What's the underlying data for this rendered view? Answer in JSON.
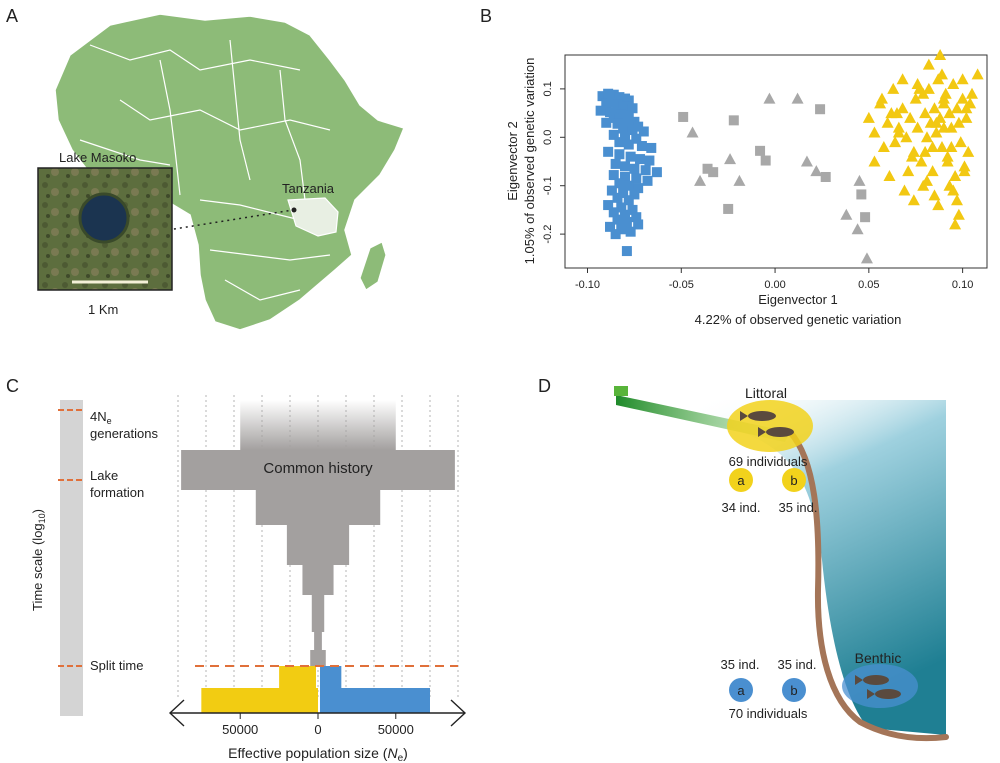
{
  "panels": {
    "a": {
      "letter": "A",
      "lake_name": "Lake Masoko",
      "country": "Tanzania",
      "scale_label": "1 Km",
      "colors": {
        "land": "#8dbb78",
        "border": "#ffffff",
        "tanzania": "#e8efe3",
        "lake": "#1b3450"
      }
    },
    "b": {
      "letter": "B",
      "xlabel_line1": "Eigenvector 1",
      "xlabel_line2": "4.22% of observed genetic variation",
      "ylabel_line1": "Eigenvector 2",
      "ylabel_line2": "1.05% of observed genetic variation"
    },
    "c": {
      "letter": "C",
      "time_axis_label": "Time scale (log",
      "time_axis_sub": "10",
      "time_axis_close": ")",
      "marker_4ne_prefix": "4N",
      "marker_4ne_sub": "e",
      "marker_4ne_line2": "generations",
      "marker_lake_line1": "Lake",
      "marker_lake_line2": "formation",
      "marker_split": "Split time",
      "common_history": "Common history",
      "xlabel_prefix": "Effective population size (",
      "xlabel_var": "N",
      "xlabel_sub": "e",
      "xlabel_suffix": ")",
      "ticks": [
        "50000",
        "0",
        "50000"
      ]
    },
    "d": {
      "letter": "D",
      "littoral_label": "Littoral",
      "littoral_count": "69 individuals",
      "littoral_a": "a",
      "littoral_b": "b",
      "littoral_a_count": "34 ind.",
      "littoral_b_count": "35 ind.",
      "benthic_label": "Benthic",
      "benthic_count": "70 individuals",
      "benthic_a": "a",
      "benthic_b": "b",
      "benthic_a_count": "35 ind.",
      "benthic_b_count": "35 ind.",
      "colors": {
        "littoral": "#f2d21c",
        "benthic": "#4a8fd0",
        "water": "#2a8a9a",
        "shore": "#a47558",
        "vegetation": "#4aa33c"
      }
    }
  },
  "chart_data": [
    {
      "type": "scatter",
      "panel": "B",
      "xlabel": "Eigenvector 1 4.22% of observed genetic variation",
      "ylabel": "Eigenvector 2 1.05% of observed genetic variation",
      "xlim": [
        -0.112,
        0.113
      ],
      "ylim": [
        -0.27,
        0.17
      ],
      "xticks": [
        "-0.10",
        "-0.05",
        "0.00",
        "0.05",
        "0.10"
      ],
      "yticks": [
        "-0.2",
        "-0.1",
        "0.0",
        "0.1"
      ],
      "xtick_values": [
        -0.1,
        -0.05,
        0.0,
        0.05,
        0.1
      ],
      "ytick_values": [
        -0.2,
        -0.1,
        0.0,
        0.1
      ],
      "series": [
        {
          "name": "benthic",
          "marker": "square",
          "color": "#4a8fd0",
          "x": [
            -0.092,
            -0.089,
            -0.086,
            -0.083,
            -0.08,
            -0.078,
            -0.09,
            -0.087,
            -0.084,
            -0.081,
            -0.079,
            -0.076,
            -0.093,
            -0.088,
            -0.085,
            -0.082,
            -0.078,
            -0.086,
            -0.083,
            -0.079,
            -0.075,
            -0.09,
            -0.084,
            -0.077,
            -0.073,
            -0.081,
            -0.076,
            -0.07,
            -0.086,
            -0.08,
            -0.074,
            -0.083,
            -0.078,
            -0.071,
            -0.066,
            -0.089,
            -0.083,
            -0.077,
            -0.072,
            -0.067,
            -0.085,
            -0.08,
            -0.075,
            -0.069,
            -0.063,
            -0.086,
            -0.08,
            -0.074,
            -0.068,
            -0.083,
            -0.078,
            -0.073,
            -0.087,
            -0.081,
            -0.075,
            -0.084,
            -0.078,
            -0.089,
            -0.082,
            -0.076,
            -0.086,
            -0.08,
            -0.074,
            -0.084,
            -0.079,
            -0.073,
            -0.088,
            -0.082,
            -0.077,
            -0.085,
            -0.079
          ],
          "y": [
            0.085,
            0.09,
            0.088,
            0.083,
            0.08,
            0.076,
            0.07,
            0.072,
            0.068,
            0.065,
            0.063,
            0.06,
            0.055,
            0.052,
            0.05,
            0.048,
            0.045,
            0.04,
            0.037,
            0.034,
            0.032,
            0.03,
            0.028,
            0.025,
            0.022,
            0.018,
            0.015,
            0.012,
            0.005,
            0.0,
            -0.003,
            -0.01,
            -0.015,
            -0.018,
            -0.022,
            -0.03,
            -0.035,
            -0.04,
            -0.045,
            -0.048,
            -0.055,
            -0.06,
            -0.065,
            -0.068,
            -0.072,
            -0.078,
            -0.082,
            -0.085,
            -0.09,
            -0.095,
            -0.1,
            -0.105,
            -0.11,
            -0.115,
            -0.118,
            -0.125,
            -0.13,
            -0.14,
            -0.145,
            -0.15,
            -0.155,
            -0.16,
            -0.165,
            -0.17,
            -0.175,
            -0.18,
            -0.185,
            -0.19,
            -0.195,
            -0.2,
            -0.235
          ]
        },
        {
          "name": "intermediate-square",
          "marker": "square",
          "color": "#a8a8a8",
          "x": [
            -0.049,
            -0.036,
            -0.033,
            -0.025,
            -0.022,
            -0.008,
            -0.005,
            0.024,
            0.027,
            0.046,
            0.048
          ],
          "y": [
            0.042,
            -0.065,
            -0.072,
            -0.148,
            0.035,
            -0.028,
            -0.048,
            0.058,
            -0.082,
            -0.118,
            -0.165
          ]
        },
        {
          "name": "intermediate-triangle",
          "marker": "triangle",
          "color": "#a8a8a8",
          "x": [
            -0.044,
            -0.04,
            -0.024,
            -0.019,
            -0.003,
            0.012,
            0.017,
            0.022,
            0.038,
            0.044,
            0.045,
            0.049
          ],
          "y": [
            0.01,
            -0.09,
            -0.045,
            -0.09,
            0.08,
            0.08,
            -0.05,
            -0.07,
            -0.16,
            -0.19,
            -0.09,
            -0.25
          ]
        },
        {
          "name": "littoral",
          "marker": "triangle",
          "color": "#f2c812",
          "x": [
            0.05,
            0.053,
            0.056,
            0.058,
            0.06,
            0.062,
            0.064,
            0.066,
            0.068,
            0.07,
            0.072,
            0.074,
            0.075,
            0.076,
            0.078,
            0.079,
            0.08,
            0.081,
            0.082,
            0.083,
            0.084,
            0.085,
            0.086,
            0.087,
            0.088,
            0.089,
            0.09,
            0.091,
            0.092,
            0.093,
            0.094,
            0.095,
            0.096,
            0.097,
            0.098,
            0.099,
            0.1,
            0.101,
            0.102,
            0.103,
            0.104,
            0.105,
            0.053,
            0.057,
            0.061,
            0.065,
            0.069,
            0.073,
            0.077,
            0.081,
            0.085,
            0.089,
            0.093,
            0.097,
            0.101,
            0.063,
            0.071,
            0.079,
            0.087,
            0.095,
            0.068,
            0.076,
            0.084,
            0.092,
            0.1,
            0.066,
            0.074,
            0.082,
            0.09,
            0.098,
            0.108,
            0.088,
            0.096,
            0.08,
            0.09,
            0.086,
            0.094,
            0.102
          ],
          "y": [
            0.04,
            0.01,
            0.07,
            -0.02,
            0.03,
            0.05,
            -0.01,
            0.02,
            0.06,
            0.0,
            0.04,
            -0.03,
            0.08,
            0.02,
            -0.05,
            0.09,
            0.05,
            0.0,
            0.1,
            0.03,
            -0.07,
            0.06,
            0.01,
            0.12,
            0.04,
            -0.02,
            0.07,
            0.09,
            -0.04,
            0.05,
            0.02,
            0.11,
            -0.08,
            0.06,
            0.03,
            -0.01,
            0.08,
            -0.06,
            0.04,
            -0.03,
            0.07,
            0.09,
            -0.05,
            0.08,
            -0.08,
            0.05,
            -0.11,
            -0.04,
            0.1,
            -0.09,
            -0.12,
            0.13,
            -0.1,
            -0.13,
            -0.07,
            0.1,
            -0.07,
            -0.1,
            -0.14,
            -0.11,
            0.12,
            0.11,
            -0.02,
            -0.05,
            0.12,
            0.01,
            -0.13,
            0.15,
            0.08,
            -0.16,
            0.13,
            0.17,
            -0.18,
            -0.03,
            0.02,
            0.03,
            -0.02,
            0.06
          ]
        }
      ]
    },
    {
      "type": "bar",
      "panel": "C",
      "title": "Common history",
      "xlabel": "Effective population size (Ne)",
      "ylabel": "Time scale (log10)",
      "xlim": [
        -90000,
        90000
      ],
      "xticks": [
        "50000",
        "0",
        "50000"
      ],
      "xtick_values": [
        -50000,
        0,
        50000
      ],
      "grid": true,
      "series": [
        {
          "name": "common history",
          "color": "#a3a09f",
          "half_width_by_epoch": [
            50000,
            88000,
            40000,
            20000,
            10000,
            4000,
            2500,
            5000
          ]
        },
        {
          "name": "littoral",
          "color": "#f2cc12",
          "side": "left",
          "width_by_epoch": [
            75000,
            25000
          ]
        },
        {
          "name": "benthic",
          "color": "#4a8fd0",
          "side": "right",
          "width_by_epoch": [
            15000,
            72000
          ]
        }
      ]
    }
  ]
}
